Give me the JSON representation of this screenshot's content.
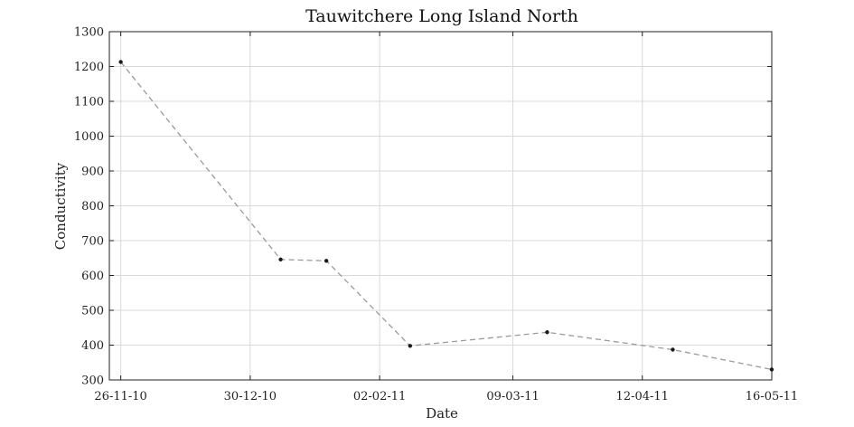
{
  "chart_data": {
    "type": "line",
    "title": "Tauwitchere Long Island North",
    "xlabel": "Date",
    "ylabel": "Conductivity",
    "grid": true,
    "xlim": [
      "2010-11-23",
      "2011-05-16"
    ],
    "ylim": [
      300,
      1300
    ],
    "y_ticks": [
      300,
      400,
      500,
      600,
      700,
      800,
      900,
      1000,
      1100,
      1200,
      1300
    ],
    "x_ticks": [
      {
        "date": "2010-11-26",
        "label": "26-11-10"
      },
      {
        "date": "2010-12-30",
        "label": "30-12-10"
      },
      {
        "date": "2011-02-02",
        "label": "02-02-11"
      },
      {
        "date": "2011-03-09",
        "label": "09-03-11"
      },
      {
        "date": "2011-04-12",
        "label": "12-04-11"
      },
      {
        "date": "2011-05-16",
        "label": "16-05-11"
      }
    ],
    "series": [
      {
        "points": [
          {
            "x": "2010-11-26",
            "y": 1213
          },
          {
            "x": "2011-01-07",
            "y": 646
          },
          {
            "x": "2011-01-19",
            "y": 642
          },
          {
            "x": "2011-02-10",
            "y": 398
          },
          {
            "x": "2011-03-18",
            "y": 437
          },
          {
            "x": "2011-04-20",
            "y": 387
          },
          {
            "x": "2011-05-16",
            "y": 330
          }
        ]
      }
    ]
  }
}
